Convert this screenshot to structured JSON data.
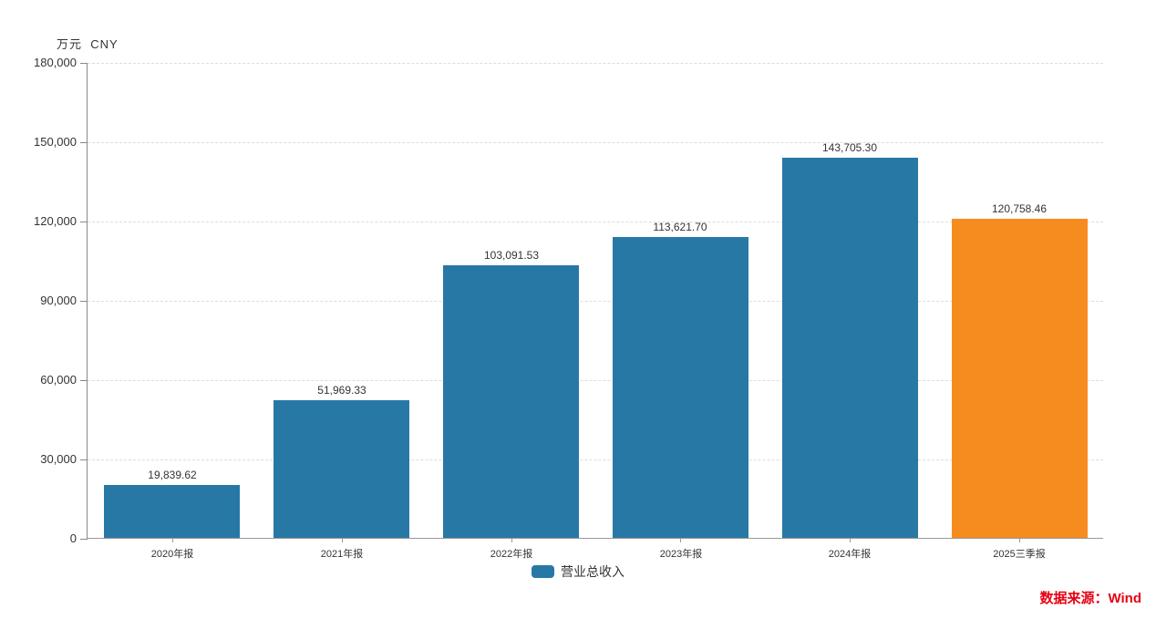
{
  "chart_data": {
    "type": "bar",
    "title": "",
    "unit_label": "万元  CNY",
    "categories": [
      "2020年报",
      "2021年报",
      "2022年报",
      "2023年报",
      "2024年报",
      "2025三季报"
    ],
    "series": [
      {
        "name": "营业总收入",
        "values": [
          19839.62,
          51969.33,
          103091.53,
          113621.7,
          143705.3,
          120758.46
        ]
      }
    ],
    "value_labels": [
      "19,839.62",
      "51,969.33",
      "103,091.53",
      "113,621.70",
      "143,705.30",
      "120,758.46"
    ],
    "bar_colors": [
      "#2878A5",
      "#2878A5",
      "#2878A5",
      "#2878A5",
      "#2878A5",
      "#F68B1F"
    ],
    "ylim": [
      0,
      180000
    ],
    "y_tick_values": [
      0,
      30000,
      60000,
      90000,
      120000,
      150000,
      180000
    ],
    "y_tick_labels": [
      "0",
      "30,000",
      "60,000",
      "90,000",
      "120,000",
      "150,000",
      "180,000"
    ],
    "xlabel": "",
    "ylabel": "万元 CNY",
    "grid": "horizontal-dashed",
    "legend": {
      "label": "营业总收入",
      "position": "bottom"
    },
    "source_note": "数据来源：Wind",
    "colors": {
      "primary": "#2878A5",
      "highlight": "#F68B1F",
      "source_text": "#E60012",
      "grid": "#DDDDDD",
      "axis": "#999999",
      "text": "#333333"
    }
  }
}
